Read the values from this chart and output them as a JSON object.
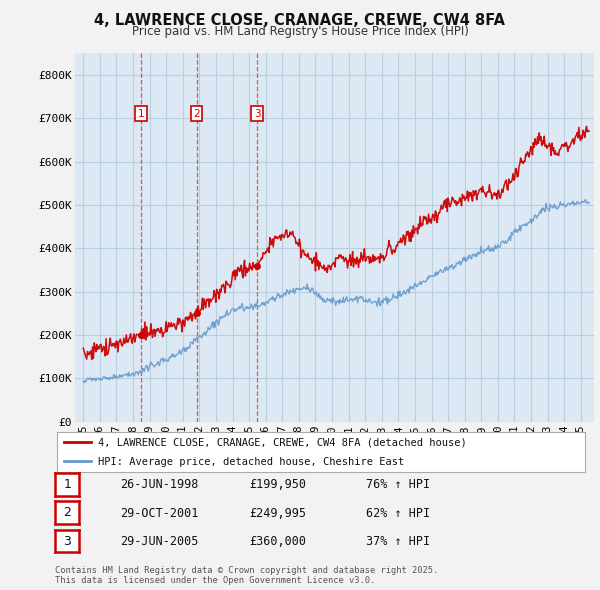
{
  "title": "4, LAWRENCE CLOSE, CRANAGE, CREWE, CW4 8FA",
  "subtitle": "Price paid vs. HM Land Registry's House Price Index (HPI)",
  "background_color": "#f2f2f2",
  "plot_bg_color": "#dce9f5",
  "grid_color": "#b8cfe0",
  "red_line_color": "#cc0000",
  "blue_line_color": "#6699cc",
  "purchase_dates": [
    1998.48,
    2001.83,
    2005.49
  ],
  "purchase_labels": [
    "1",
    "2",
    "3"
  ],
  "purchase_prices": [
    199950,
    249995,
    360000
  ],
  "purchase_dates_str": [
    "26-JUN-1998",
    "29-OCT-2001",
    "29-JUN-2005"
  ],
  "purchase_pct": [
    "76%",
    "62%",
    "37%"
  ],
  "legend_label_red": "4, LAWRENCE CLOSE, CRANAGE, CREWE, CW4 8FA (detached house)",
  "legend_label_blue": "HPI: Average price, detached house, Cheshire East",
  "footer_text": "Contains HM Land Registry data © Crown copyright and database right 2025.\nThis data is licensed under the Open Government Licence v3.0.",
  "ylim": [
    0,
    850000
  ],
  "yticks": [
    0,
    100000,
    200000,
    300000,
    400000,
    500000,
    600000,
    700000,
    800000
  ],
  "ytick_labels": [
    "£0",
    "£100K",
    "£200K",
    "£300K",
    "£400K",
    "£500K",
    "£600K",
    "£700K",
    "£800K"
  ],
  "xlim": [
    1994.5,
    2025.8
  ],
  "xticks": [
    1995,
    1996,
    1997,
    1998,
    1999,
    2000,
    2001,
    2002,
    2003,
    2004,
    2005,
    2006,
    2007,
    2008,
    2009,
    2010,
    2011,
    2012,
    2013,
    2014,
    2015,
    2016,
    2017,
    2018,
    2019,
    2020,
    2021,
    2022,
    2023,
    2024,
    2025
  ],
  "xtick_labels": [
    "95",
    "96",
    "97",
    "98",
    "99",
    "00",
    "01",
    "02",
    "03",
    "04",
    "05",
    "06",
    "07",
    "08",
    "09",
    "10",
    "11",
    "12",
    "13",
    "14",
    "15",
    "16",
    "17",
    "18",
    "19",
    "20",
    "21",
    "22",
    "23",
    "24",
    "25"
  ]
}
